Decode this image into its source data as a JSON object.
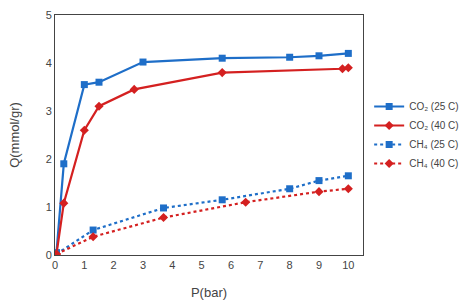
{
  "chart_data": {
    "type": "line",
    "xlabel": "P(bar)",
    "ylabel": "Q(mmol/gr)",
    "xlim": [
      0,
      10.5
    ],
    "ylim": [
      0,
      5
    ],
    "xticks": [
      0,
      1,
      2,
      3,
      4,
      5,
      6,
      7,
      8,
      9,
      10
    ],
    "yticks": [
      0,
      1,
      2,
      3,
      4,
      5
    ],
    "grid": false,
    "legend": "right",
    "series": [
      {
        "name": "CO₂ (25 C)",
        "color": "#1e6ec8",
        "line_style": "solid",
        "marker": "square",
        "x": [
          0.05,
          0.3,
          1.0,
          1.5,
          3.0,
          5.7,
          8.0,
          9.0,
          10.0
        ],
        "values": [
          0.05,
          1.9,
          3.55,
          3.6,
          4.02,
          4.1,
          4.12,
          4.15,
          4.2
        ]
      },
      {
        "name": "CO₂ (40 C)",
        "color": "#d42020",
        "line_style": "solid",
        "marker": "diamond",
        "x": [
          0.05,
          0.3,
          1.0,
          1.5,
          2.7,
          5.7,
          9.8,
          10.0
        ],
        "values": [
          0.02,
          1.08,
          2.6,
          3.1,
          3.45,
          3.8,
          3.88,
          3.9
        ]
      },
      {
        "name": "CH₄ (25 C)",
        "color": "#1e6ec8",
        "line_style": "dotted",
        "marker": "square",
        "x": [
          0.05,
          1.3,
          3.7,
          5.7,
          8.0,
          9.0,
          10.0
        ],
        "values": [
          0.02,
          0.52,
          0.98,
          1.15,
          1.38,
          1.55,
          1.65
        ]
      },
      {
        "name": "CH₄ (40 C)",
        "color": "#d42020",
        "line_style": "dotted",
        "marker": "diamond",
        "x": [
          0.05,
          1.3,
          3.7,
          6.5,
          9.0,
          10.0
        ],
        "values": [
          0.02,
          0.38,
          0.78,
          1.1,
          1.32,
          1.38
        ]
      }
    ]
  }
}
